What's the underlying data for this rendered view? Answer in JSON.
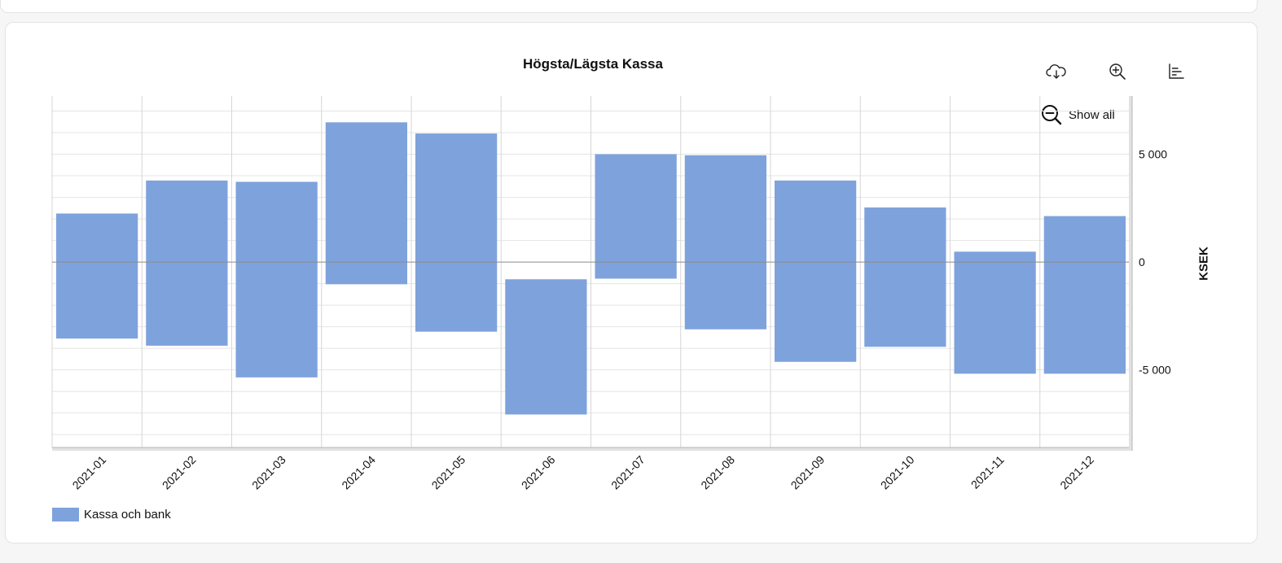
{
  "chart_data": {
    "type": "bar",
    "subtype": "floating-range",
    "title": "Högsta/Lägsta Kassa",
    "xlabel": "",
    "ylabel": "KSEK",
    "ylim": [
      -8600,
      7700
    ],
    "yticks": [
      5000,
      0,
      -5000
    ],
    "ytick_labels": [
      "5 000",
      "0",
      "-5 000"
    ],
    "y_axis_position": "right",
    "grid": true,
    "legend_position": "bottom-left",
    "categories": [
      "2021-01",
      "2021-02",
      "2021-03",
      "2021-04",
      "2021-05",
      "2021-06",
      "2021-07",
      "2021-08",
      "2021-09",
      "2021-10",
      "2021-11",
      "2021-12"
    ],
    "series": [
      {
        "name": "Kassa och bank",
        "color": "#7ea2dc",
        "high": [
          2250,
          3780,
          3720,
          6480,
          5960,
          -800,
          5000,
          4950,
          3780,
          2530,
          480,
          2130
        ],
        "low": [
          -3550,
          -3880,
          -5350,
          -1030,
          -3230,
          -7070,
          -770,
          -3120,
          -4630,
          -3930,
          -5180,
          -5180
        ]
      }
    ]
  },
  "toolbar": {
    "download_icon": "cloud-download-icon",
    "zoom_icon": "zoom-in-icon",
    "menu_icon": "chart-menu-icon"
  },
  "show_all": {
    "label": "Show all",
    "icon": "zoom-out-icon"
  }
}
